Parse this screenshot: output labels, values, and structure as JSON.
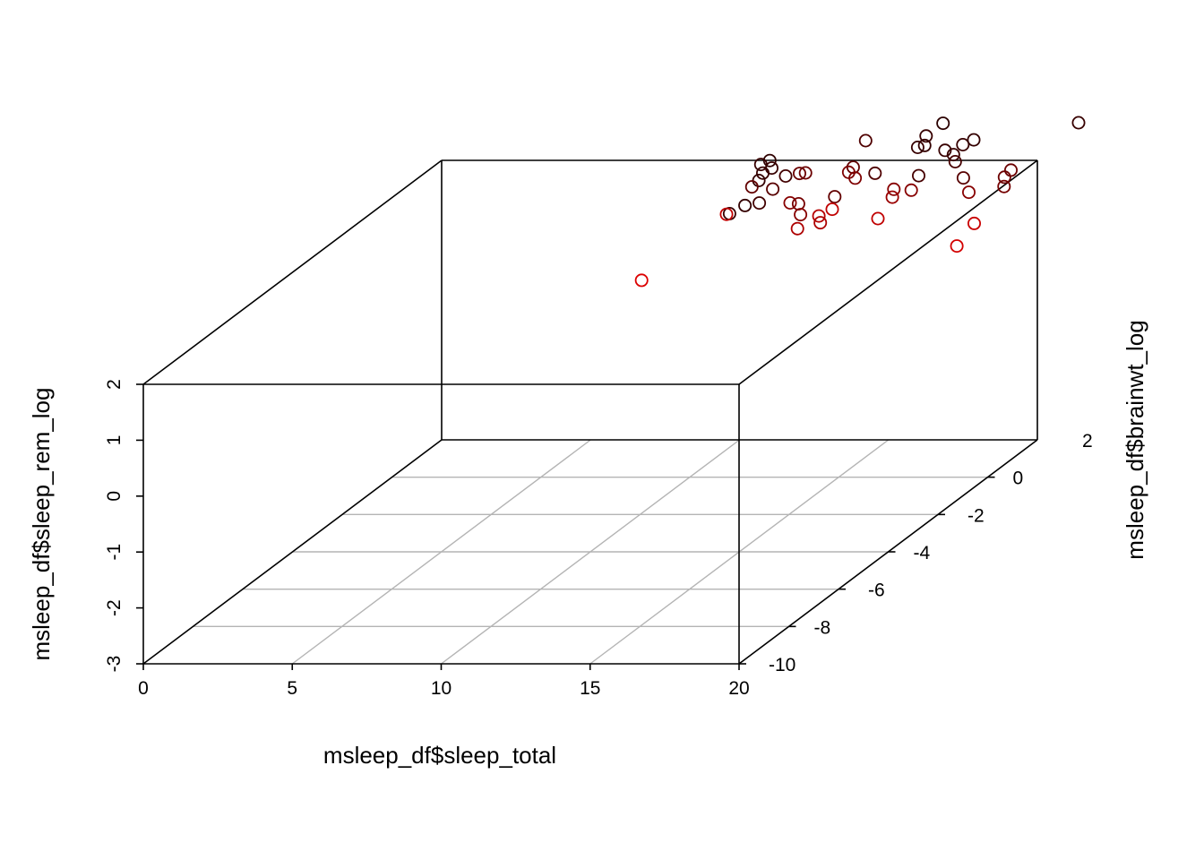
{
  "chart_data": {
    "type": "scatter3d",
    "xlabel": "msleep_df$sleep_total",
    "ylabel": "msleep_df$brainwt_log",
    "zlabel": "msleep_df$sleep_rem_log",
    "xlim": [
      0,
      20
    ],
    "ylim": [
      -10,
      2
    ],
    "zlim": [
      -3,
      2
    ],
    "x_ticks": [
      "0",
      "5",
      "10",
      "15",
      "20"
    ],
    "y_ticks": [
      "-10",
      "-8",
      "-6",
      "-4",
      "-2",
      "0",
      "2"
    ],
    "z_ticks": [
      "-3",
      "-2",
      "-1",
      "0",
      "1",
      "2"
    ],
    "grid": true,
    "box": true,
    "marker": "open-circle",
    "color_gradient": [
      "#000000",
      "#ff0000"
    ],
    "colors": {
      "near": "#d40000",
      "far": "#200000",
      "grid": "#b4b4b4",
      "frame": "#000000"
    },
    "points": [
      {
        "x": 10.0,
        "y": 1.6,
        "z": 1.18,
        "c": 0.12
      },
      {
        "x": 10.05,
        "y": -2.0,
        "z": 1.19,
        "c": 1.0
      },
      {
        "x": 10.6,
        "y": 1.5,
        "z": 1.36,
        "c": 0.1
      },
      {
        "x": 11.0,
        "y": 1.6,
        "z": 1.37,
        "c": 0.18
      },
      {
        "x": 10.95,
        "y": 1.8,
        "z": 1.84,
        "c": 0.12
      },
      {
        "x": 10.9,
        "y": 1.7,
        "z": 1.74,
        "c": 0.1
      },
      {
        "x": 11.3,
        "y": 1.3,
        "z": 2.16,
        "c": 0.12
      },
      {
        "x": 11.6,
        "y": 1.3,
        "z": 2.23,
        "c": 0.08
      },
      {
        "x": 11.5,
        "y": 0.7,
        "z": 1.96,
        "c": 0.35
      },
      {
        "x": 11.95,
        "y": 1.0,
        "z": 1.82,
        "c": 0.3
      },
      {
        "x": 11.4,
        "y": -0.2,
        "z": 1.77,
        "c": 0.85
      },
      {
        "x": 12.0,
        "y": 0.9,
        "z": 2.23,
        "c": 0.12
      },
      {
        "x": 12.3,
        "y": 1.1,
        "z": 2.02,
        "c": 0.18
      },
      {
        "x": 12.6,
        "y": 1.3,
        "z": 2.0,
        "c": 0.4
      },
      {
        "x": 12.8,
        "y": 1.3,
        "z": 2.01,
        "c": 0.4
      },
      {
        "x": 13.2,
        "y": 0.2,
        "z": 1.84,
        "c": 0.55
      },
      {
        "x": 13.4,
        "y": 0.3,
        "z": 1.79,
        "c": 0.45
      },
      {
        "x": 13.8,
        "y": -0.1,
        "z": 1.73,
        "c": 0.55
      },
      {
        "x": 14.2,
        "y": 0.8,
        "z": 1.75,
        "c": 0.35
      },
      {
        "x": 14.4,
        "y": 1.8,
        "z": 2.42,
        "c": 0.25
      },
      {
        "x": 14.4,
        "y": 1.3,
        "z": 2.11,
        "c": 0.35
      },
      {
        "x": 14.5,
        "y": 1.0,
        "z": 2.12,
        "c": 0.5
      },
      {
        "x": 14.45,
        "y": -1.0,
        "z": 1.78,
        "c": 0.75
      },
      {
        "x": 14.5,
        "y": -0.2,
        "z": 1.74,
        "c": 0.8
      },
      {
        "x": 14.8,
        "y": 0.9,
        "z": 2.05,
        "c": 0.5
      },
      {
        "x": 14.95,
        "y": -0.2,
        "z": 1.86,
        "c": 0.85
      },
      {
        "x": 15.05,
        "y": -0.8,
        "z": 1.82,
        "c": 0.75
      },
      {
        "x": 15.3,
        "y": 1.1,
        "z": 2.07,
        "c": 0.25
      },
      {
        "x": 16.4,
        "y": 1.5,
        "z": 2.4,
        "c": 0.12
      },
      {
        "x": 16.6,
        "y": 1.6,
        "z": 2.57,
        "c": 0.12
      },
      {
        "x": 16.6,
        "y": 0.3,
        "z": 2.05,
        "c": 0.55
      },
      {
        "x": 16.8,
        "y": 1.3,
        "z": 2.5,
        "c": 0.1
      },
      {
        "x": 16.85,
        "y": 1.0,
        "z": 2.06,
        "c": 0.2
      },
      {
        "x": 17.0,
        "y": 1.8,
        "z": 2.73,
        "c": 0.06
      },
      {
        "x": 16.9,
        "y": -0.7,
        "z": 1.86,
        "c": 0.85
      },
      {
        "x": 17.05,
        "y": -0.3,
        "z": 2.11,
        "c": 0.65
      },
      {
        "x": 17.4,
        "y": 1.4,
        "z": 2.38,
        "c": 0.12
      },
      {
        "x": 17.35,
        "y": 0.1,
        "z": 2.1,
        "c": 0.55
      },
      {
        "x": 17.85,
        "y": 1.2,
        "z": 2.37,
        "c": 0.12
      },
      {
        "x": 17.95,
        "y": 1.15,
        "z": 2.26,
        "c": 0.2
      },
      {
        "x": 18.0,
        "y": 1.4,
        "z": 2.48,
        "c": 0.12
      },
      {
        "x": 18.2,
        "y": 1.6,
        "z": 2.5,
        "c": 0.1
      },
      {
        "x": 18.6,
        "y": 0.7,
        "z": 2.12,
        "c": 0.3
      },
      {
        "x": 19.2,
        "y": 0.2,
        "z": 2.03,
        "c": 0.55
      },
      {
        "x": 20.3,
        "y": -0.9,
        "z": 1.84,
        "c": 0.9
      },
      {
        "x": 20.3,
        "y": -1.6,
        "z": 1.67,
        "c": 0.95
      },
      {
        "x": 20.8,
        "y": -0.3,
        "z": 2.3,
        "c": 0.45
      },
      {
        "x": 20.9,
        "y": -0.4,
        "z": 2.5,
        "c": 0.4
      },
      {
        "x": 20.95,
        "y": -0.2,
        "z": 2.56,
        "c": 0.4
      },
      {
        "x": 22.3,
        "y": 0.9,
        "z": 3.04,
        "c": 0.12
      }
    ]
  }
}
